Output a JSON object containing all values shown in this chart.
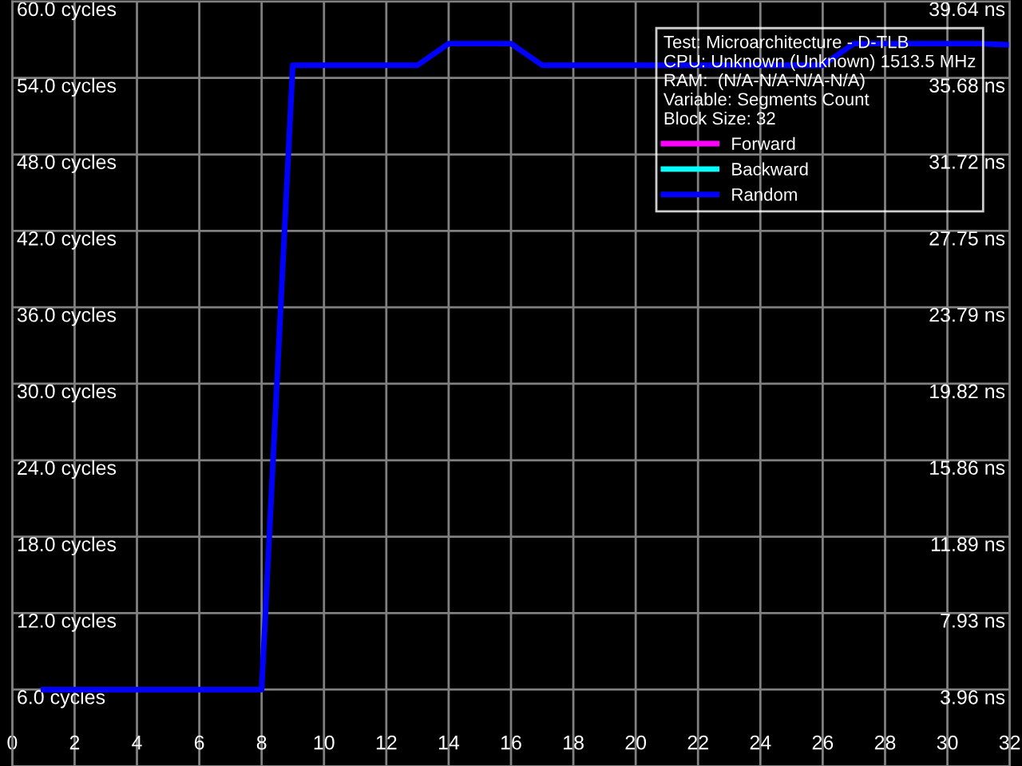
{
  "chart_data": {
    "type": "line",
    "legend_title": "Test: Microarchitecture - D-TLB\nCPU: Unknown (Unknown) 1513.5 MHz\nRAM:  (N/A-N/A-N/A-N/A)\nVariable: Segments Count\nBlock Size: 32",
    "x": [
      1,
      2,
      3,
      4,
      5,
      6,
      7,
      8,
      9,
      10,
      11,
      12,
      13,
      14,
      15,
      16,
      17,
      18,
      19,
      20,
      21,
      22,
      23,
      24,
      25,
      26,
      27,
      28,
      29,
      30,
      31,
      32
    ],
    "series": [
      {
        "name": "Forward",
        "color": "#ff00ff",
        "values": [
          null,
          null,
          null,
          null,
          null,
          null,
          null,
          null,
          null,
          null,
          null,
          null,
          null,
          null,
          null,
          null,
          null,
          null,
          null,
          null,
          null,
          null,
          null,
          null,
          null,
          null,
          null,
          null,
          null,
          null,
          null,
          null
        ]
      },
      {
        "name": "Backward",
        "color": "#00ffff",
        "values": [
          null,
          null,
          null,
          null,
          null,
          null,
          null,
          null,
          null,
          null,
          null,
          null,
          null,
          null,
          null,
          null,
          null,
          null,
          null,
          null,
          null,
          null,
          null,
          null,
          null,
          null,
          null,
          null,
          null,
          null,
          null,
          null
        ]
      },
      {
        "name": "Random",
        "color": "#0000ff",
        "values": [
          6,
          6,
          6,
          6,
          6,
          6,
          6,
          6,
          55,
          55,
          55,
          55,
          55,
          56.7,
          56.7,
          56.7,
          55,
          55,
          55,
          55,
          55,
          55,
          55,
          55,
          55,
          55,
          56.7,
          56.7,
          56.7,
          56.7,
          56.7,
          56.6
        ]
      }
    ],
    "xlim": [
      0,
      32
    ],
    "xticks": [
      0,
      2,
      4,
      6,
      8,
      10,
      12,
      14,
      16,
      18,
      20,
      22,
      24,
      26,
      28,
      30,
      32
    ],
    "ylim": [
      0,
      60
    ],
    "yticks": [
      {
        "value": 6,
        "label": "6.0 cycles"
      },
      {
        "value": 12,
        "label": "12.0 cycles"
      },
      {
        "value": 18,
        "label": "18.0 cycles"
      },
      {
        "value": 24,
        "label": "24.0 cycles"
      },
      {
        "value": 30,
        "label": "30.0 cycles"
      },
      {
        "value": 36,
        "label": "36.0 cycles"
      },
      {
        "value": 42,
        "label": "42.0 cycles"
      },
      {
        "value": 48,
        "label": "48.0 cycles"
      },
      {
        "value": 54,
        "label": "54.0 cycles"
      },
      {
        "value": 60,
        "label": "60.0 cycles"
      }
    ],
    "y2lim": [
      0,
      39.64
    ],
    "y2ticks": [
      {
        "value": 3.96,
        "label": "3.96 ns"
      },
      {
        "value": 7.93,
        "label": "7.93 ns"
      },
      {
        "value": 11.89,
        "label": "11.89 ns"
      },
      {
        "value": 15.86,
        "label": "15.86 ns"
      },
      {
        "value": 19.82,
        "label": "19.82 ns"
      },
      {
        "value": 23.79,
        "label": "23.79 ns"
      },
      {
        "value": 27.75,
        "label": "27.75 ns"
      },
      {
        "value": 31.72,
        "label": "31.72 ns"
      },
      {
        "value": 35.68,
        "label": "35.68 ns"
      },
      {
        "value": 39.64,
        "label": "39.64 ns"
      }
    ],
    "grid": true,
    "legend": "top right",
    "line_style": "solid",
    "marker": "none"
  }
}
